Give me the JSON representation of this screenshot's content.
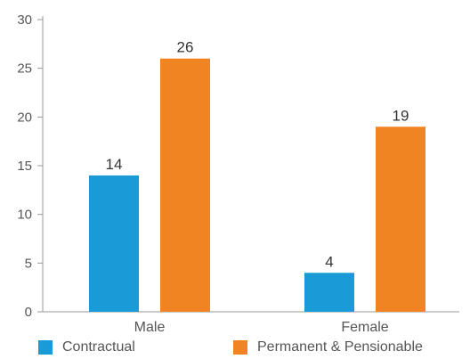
{
  "chart_data": {
    "type": "bar",
    "categories": [
      "Male",
      "Female"
    ],
    "series": [
      {
        "name": "Contractual",
        "values": [
          14,
          4
        ],
        "color": "#1a9ad6"
      },
      {
        "name": "Permanent & Pensionable",
        "values": [
          26,
          19
        ],
        "color": "#f08422"
      }
    ],
    "ylim": [
      0,
      30
    ],
    "yticks": [
      0,
      5,
      10,
      15,
      20,
      25,
      30
    ],
    "title": "",
    "xlabel": "",
    "ylabel": "",
    "grid": false,
    "legend_position": "bottom"
  }
}
